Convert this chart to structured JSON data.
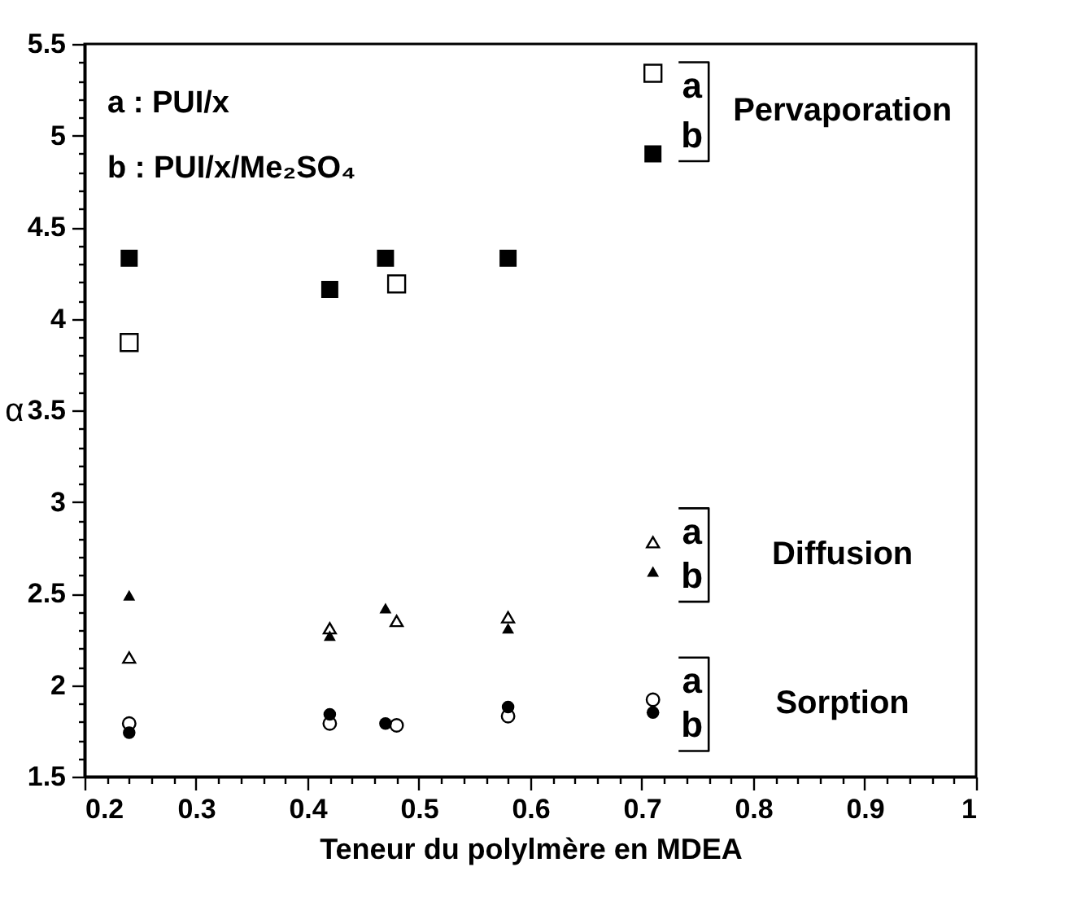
{
  "chart_data": {
    "type": "scatter",
    "xlabel": "Teneur du polylmère en MDEA",
    "ylabel": "α",
    "xlim": [
      0.2,
      1
    ],
    "ylim": [
      1.5,
      5.5
    ],
    "xticks": [
      0.2,
      {
        "value": 0.22,
        "label": null
      },
      {
        "value": 0.24,
        "label": null
      },
      {
        "value": 0.26,
        "label": null
      },
      {
        "value": 0.28,
        "label": null
      },
      0.3,
      {
        "value": 0.32,
        "label": null
      },
      {
        "value": 0.34,
        "label": null
      },
      {
        "value": 0.36,
        "label": null
      },
      {
        "value": 0.38,
        "label": null
      },
      0.4,
      {
        "value": 0.42,
        "label": null
      },
      {
        "value": 0.44,
        "label": null
      },
      {
        "value": 0.46,
        "label": null
      },
      {
        "value": 0.48,
        "label": null
      },
      0.5,
      {
        "value": 0.52,
        "label": null
      },
      {
        "value": 0.54,
        "label": null
      },
      {
        "value": 0.56,
        "label": null
      },
      {
        "value": 0.58,
        "label": null
      },
      0.6,
      {
        "value": 0.62,
        "label": null
      },
      {
        "value": 0.64,
        "label": null
      },
      {
        "value": 0.66,
        "label": null
      },
      {
        "value": 0.68,
        "label": null
      },
      0.7,
      {
        "value": 0.72,
        "label": null
      },
      {
        "value": 0.74,
        "label": null
      },
      {
        "value": 0.76,
        "label": null
      },
      {
        "value": 0.78,
        "label": null
      },
      0.8,
      {
        "value": 0.82,
        "label": null
      },
      {
        "value": 0.84,
        "label": null
      },
      {
        "value": 0.86,
        "label": null
      },
      {
        "value": 0.88,
        "label": null
      },
      0.9,
      {
        "value": 0.92,
        "label": null
      },
      {
        "value": 0.94,
        "label": null
      },
      {
        "value": 0.96,
        "label": null
      },
      {
        "value": 0.98,
        "label": null
      },
      1
    ],
    "yticks": [
      1.5,
      {
        "value": 1.6,
        "label": null
      },
      {
        "value": 1.7,
        "label": null
      },
      {
        "value": 1.8,
        "label": null
      },
      {
        "value": 1.9,
        "label": null
      },
      2,
      {
        "value": 2.1,
        "label": null
      },
      {
        "value": 2.2,
        "label": null
      },
      {
        "value": 2.3,
        "label": null
      },
      {
        "value": 2.4,
        "label": null
      },
      2.5,
      {
        "value": 2.6,
        "label": null
      },
      {
        "value": 2.7,
        "label": null
      },
      {
        "value": 2.8,
        "label": null
      },
      {
        "value": 2.9,
        "label": null
      },
      3,
      {
        "value": 3.1,
        "label": null
      },
      {
        "value": 3.2,
        "label": null
      },
      {
        "value": 3.3,
        "label": null
      },
      {
        "value": 3.4,
        "label": null
      },
      3.5,
      {
        "value": 3.6,
        "label": null
      },
      {
        "value": 3.7,
        "label": null
      },
      {
        "value": 3.8,
        "label": null
      },
      {
        "value": 3.9,
        "label": null
      },
      4,
      {
        "value": 4.1,
        "label": null
      },
      {
        "value": 4.2,
        "label": null
      },
      {
        "value": 4.3,
        "label": null
      },
      {
        "value": 4.4,
        "label": null
      },
      4.5,
      {
        "value": 4.6,
        "label": null
      },
      {
        "value": 4.7,
        "label": null
      },
      {
        "value": 4.8,
        "label": null
      },
      {
        "value": 4.9,
        "label": null
      },
      5,
      {
        "value": 5.1,
        "label": null
      },
      {
        "value": 5.2,
        "label": null
      },
      {
        "value": 5.3,
        "label": null
      },
      {
        "value": 5.4,
        "label": null
      },
      5.5
    ],
    "grid": false,
    "series": [
      {
        "name": "a",
        "marker": "square",
        "color": "#000000",
        "x": [
          0.24,
          0.48,
          0.71
        ],
        "values": [
          3.87,
          4.19,
          5.34
        ]
      },
      {
        "name": "b",
        "marker": "square",
        "color": "#000000",
        "x": [
          0.24,
          0.42,
          0.47,
          0.58,
          0.71
        ],
        "values": [
          4.33,
          4.16,
          4.33,
          4.33,
          4.9
        ]
      },
      {
        "name": "a",
        "marker": "triangle",
        "color": "#000000",
        "x": [
          0.24,
          0.42,
          0.48,
          0.58,
          0.71
        ],
        "values": [
          2.15,
          2.31,
          2.35,
          2.37,
          2.78
        ]
      },
      {
        "name": "b",
        "marker": "triangle",
        "color": "#000000",
        "x": [
          0.24,
          0.42,
          0.47,
          0.58,
          0.71
        ],
        "values": [
          2.49,
          2.27,
          2.42,
          2.31,
          2.62
        ]
      },
      {
        "name": "a",
        "marker": "circle",
        "color": "#000000",
        "x": [
          0.24,
          0.42,
          0.48,
          0.58,
          0.71
        ],
        "values": [
          1.79,
          1.79,
          1.78,
          1.83,
          1.92
        ]
      },
      {
        "name": "b",
        "marker": "circle",
        "color": "#000000",
        "x": [
          0.24,
          0.42,
          0.47,
          0.58,
          0.71
        ],
        "values": [
          1.74,
          1.84,
          1.79,
          1.88,
          1.85
        ]
      }
    ],
    "annotations": [
      "a : PUI/x",
      "b : PUI/x/Me₂SO₄",
      "Pervaporation",
      "Diffusion",
      "Sorption"
    ]
  }
}
